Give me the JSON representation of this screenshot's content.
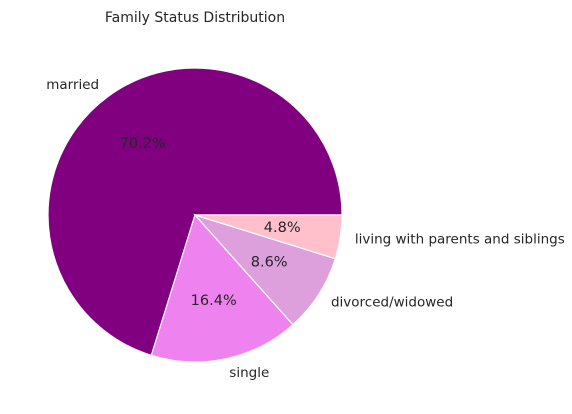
{
  "chart_data": {
    "type": "pie",
    "title": "Family Status Distribution",
    "labels": [
      "married",
      "single",
      "divorced/widowed",
      "living with parents and siblings"
    ],
    "values": [
      70.2,
      16.4,
      8.6,
      4.8
    ],
    "percent_labels": [
      "70.2%",
      "16.4%",
      "8.6%",
      "4.8%"
    ],
    "colors": [
      "#800080",
      "#ee82ee",
      "#dda0dd",
      "#ffc0cb"
    ],
    "start_angle_deg": 0,
    "direction": "counterclockwise",
    "legend": "none"
  }
}
